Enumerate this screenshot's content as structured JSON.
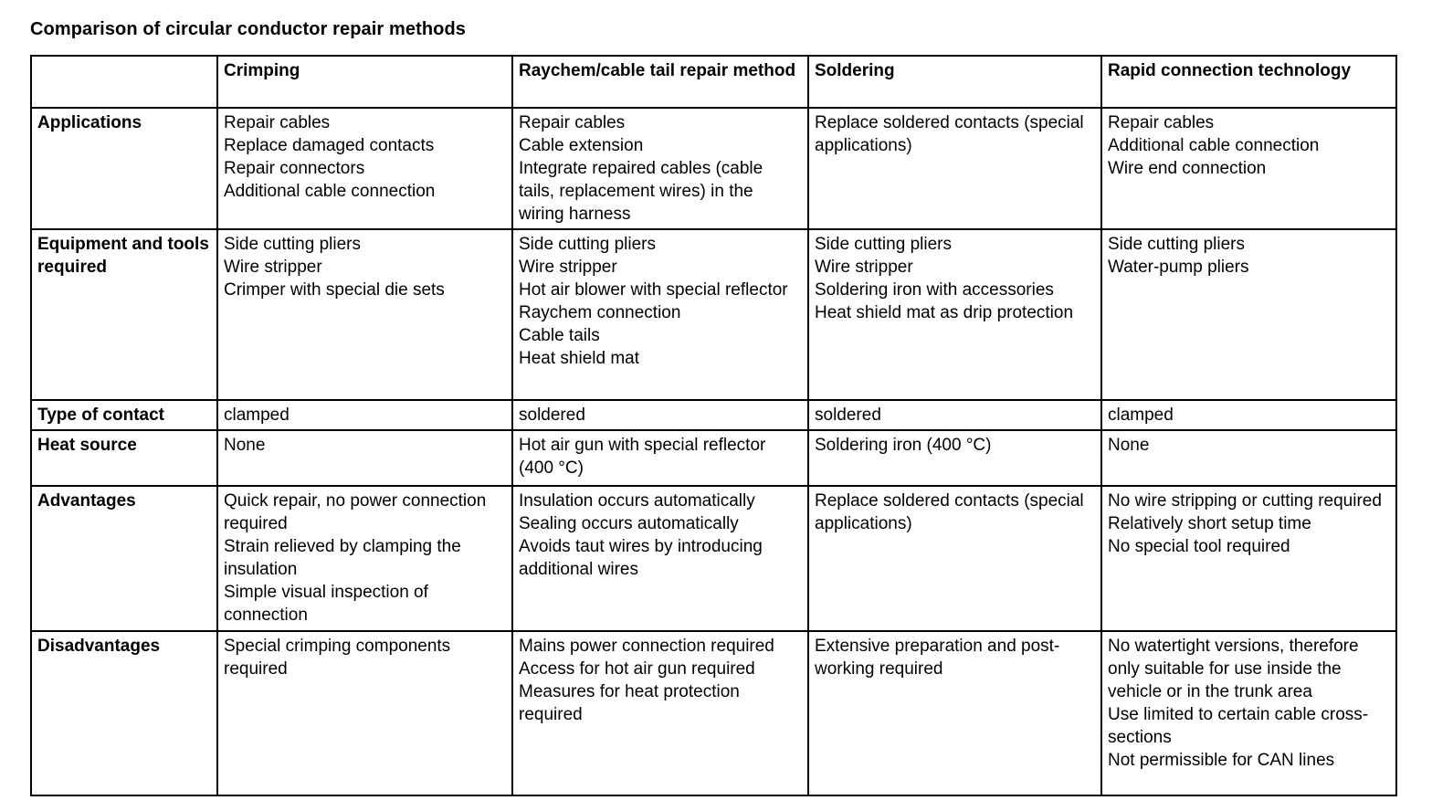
{
  "title": "Comparison of circular conductor repair methods",
  "colors": {
    "background": "#ffffff",
    "text": "#000000",
    "border": "#000000"
  },
  "table": {
    "columns": [
      "",
      "Crimping",
      "Raychem/cable tail repair method",
      "Soldering",
      "Rapid connection technology"
    ],
    "rows": [
      {
        "header": "Applications",
        "cells": [
          [
            "Repair cables",
            "Replace damaged contacts",
            "Repair connectors",
            "Additional cable connection"
          ],
          [
            "Repair cables",
            "Cable extension",
            "Integrate repaired cables (cable tails, replacement wires) in the wiring harness"
          ],
          [
            "Replace soldered contacts (special applications)"
          ],
          [
            "Repair cables",
            "Additional cable connection",
            "Wire end connection"
          ]
        ]
      },
      {
        "header": "Equipment and tools required",
        "cells": [
          [
            "Side cutting pliers",
            "Wire stripper",
            "Crimper with special die sets"
          ],
          [
            "Side cutting pliers",
            "Wire stripper",
            "Hot air blower with special reflector",
            "Raychem connection",
            "Cable tails",
            "Heat shield mat"
          ],
          [
            "Side cutting pliers",
            "Wire stripper",
            "Soldering iron with accessories",
            "Heat shield mat as drip protection"
          ],
          [
            "Side cutting pliers",
            "Water-pump pliers"
          ]
        ]
      },
      {
        "header": "Type of contact",
        "cells": [
          [
            "clamped"
          ],
          [
            "soldered"
          ],
          [
            "soldered"
          ],
          [
            "clamped"
          ]
        ]
      },
      {
        "header": "Heat source",
        "cells": [
          [
            "None"
          ],
          [
            "Hot air gun with special reflector (400 °C)"
          ],
          [
            "Soldering iron (400 °C)"
          ],
          [
            "None"
          ]
        ]
      },
      {
        "header": "Advantages",
        "cells": [
          [
            "Quick repair, no power connection required",
            "Strain relieved by clamping the insulation",
            "Simple visual inspection of connection"
          ],
          [
            "Insulation occurs automatically",
            "Sealing occurs automatically",
            "Avoids taut wires by introducing additional wires"
          ],
          [
            "Replace soldered contacts (special applications)"
          ],
          [
            "No wire stripping or cutting required",
            "Relatively short setup time",
            "No special tool required"
          ]
        ]
      },
      {
        "header": "Disadvantages",
        "cells": [
          [
            "Special crimping components required"
          ],
          [
            "Mains power connection required",
            "Access for hot air gun required",
            "Measures for heat protection required"
          ],
          [
            "Extensive preparation and post-working required"
          ],
          [
            "No watertight versions, therefore only suitable for use inside the vehicle or in the trunk area",
            "Use limited to certain cable cross-sections",
            "Not permissible for CAN lines"
          ]
        ]
      }
    ]
  }
}
